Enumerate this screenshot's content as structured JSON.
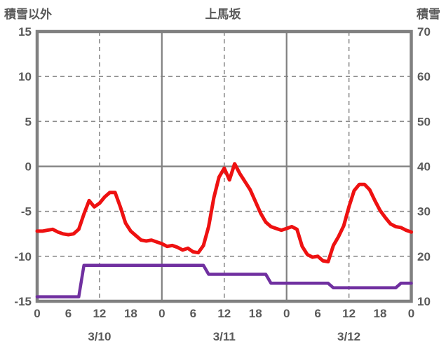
{
  "header": {
    "left_axis_title": "積雪以外",
    "title": "上馬坂",
    "right_axis_title": "積雪"
  },
  "colors": {
    "temperature_line": "#ee1111",
    "snow_line": "#7030a0",
    "grid": "#8c8c8c",
    "border": "#808080",
    "text": "#595959",
    "background": "#ffffff"
  },
  "chart_data": {
    "type": "line",
    "title": "上馬坂",
    "left_axis": {
      "label": "積雪以外",
      "min": -15,
      "max": 15,
      "ticks": [
        15,
        10,
        5,
        0,
        -5,
        -10,
        -15
      ]
    },
    "right_axis": {
      "label": "積雪",
      "min": 10,
      "max": 70,
      "ticks": [
        70,
        60,
        50,
        40,
        30,
        20,
        10
      ]
    },
    "x_axis": {
      "hours_total": 72,
      "hour_tick_positions": [
        0,
        6,
        12,
        18,
        24,
        30,
        36,
        42,
        48,
        54,
        60,
        66,
        72
      ],
      "hour_tick_labels": [
        "0",
        "6",
        "12",
        "18",
        "0",
        "6",
        "12",
        "18",
        "0",
        "6",
        "12",
        "18",
        "0"
      ],
      "day_labels": [
        "3/10",
        "3/11",
        "3/12"
      ],
      "day_label_positions": [
        12,
        36,
        60
      ],
      "solid_gridline_hours": [
        24,
        48
      ],
      "dashed_gridline_hours": [
        12,
        36,
        60
      ]
    },
    "grid": {
      "horizontal_dashed_at": [
        10,
        5,
        -5,
        -10
      ],
      "horizontal_solid_at": [
        0
      ]
    },
    "series": [
      {
        "name": "積雪以外",
        "axis": "left",
        "color": "#ee1111",
        "x_step_hours": 1,
        "values": [
          -7.2,
          -7.2,
          -7.1,
          -7.0,
          -7.3,
          -7.5,
          -7.6,
          -7.5,
          -7.0,
          -5.3,
          -3.8,
          -4.5,
          -4.1,
          -3.4,
          -2.9,
          -2.9,
          -4.5,
          -6.3,
          -7.2,
          -7.7,
          -8.2,
          -8.3,
          -8.2,
          -8.4,
          -8.6,
          -8.9,
          -8.8,
          -9.0,
          -9.3,
          -9.1,
          -9.5,
          -9.6,
          -8.8,
          -6.7,
          -3.5,
          -1.2,
          -0.2,
          -1.5,
          0.3,
          -0.8,
          -1.7,
          -2.6,
          -3.9,
          -5.2,
          -6.2,
          -6.7,
          -6.9,
          -7.1,
          -6.9,
          -6.7,
          -7.0,
          -8.9,
          -9.8,
          -10.1,
          -10.0,
          -10.5,
          -10.6,
          -8.8,
          -7.8,
          -6.6,
          -4.5,
          -2.7,
          -2.0,
          -2.0,
          -2.6,
          -3.8,
          -4.9,
          -5.7,
          -6.4,
          -6.7,
          -6.8,
          -7.1,
          -7.3
        ]
      },
      {
        "name": "積雪",
        "axis": "right",
        "color": "#7030a0",
        "x_step_hours": 1,
        "values": [
          11,
          11,
          11,
          11,
          11,
          11,
          11,
          11,
          11,
          18,
          18,
          18,
          18,
          18,
          18,
          18,
          18,
          18,
          18,
          18,
          18,
          18,
          18,
          18,
          18,
          18,
          18,
          18,
          18,
          18,
          18,
          18,
          18,
          16,
          16,
          16,
          16,
          16,
          16,
          16,
          16,
          16,
          16,
          16,
          16,
          14,
          14,
          14,
          14,
          14,
          14,
          14,
          14,
          14,
          14,
          14,
          14,
          13,
          13,
          13,
          13,
          13,
          13,
          13,
          13,
          13,
          13,
          13,
          13,
          13,
          14,
          14,
          14
        ]
      }
    ]
  }
}
